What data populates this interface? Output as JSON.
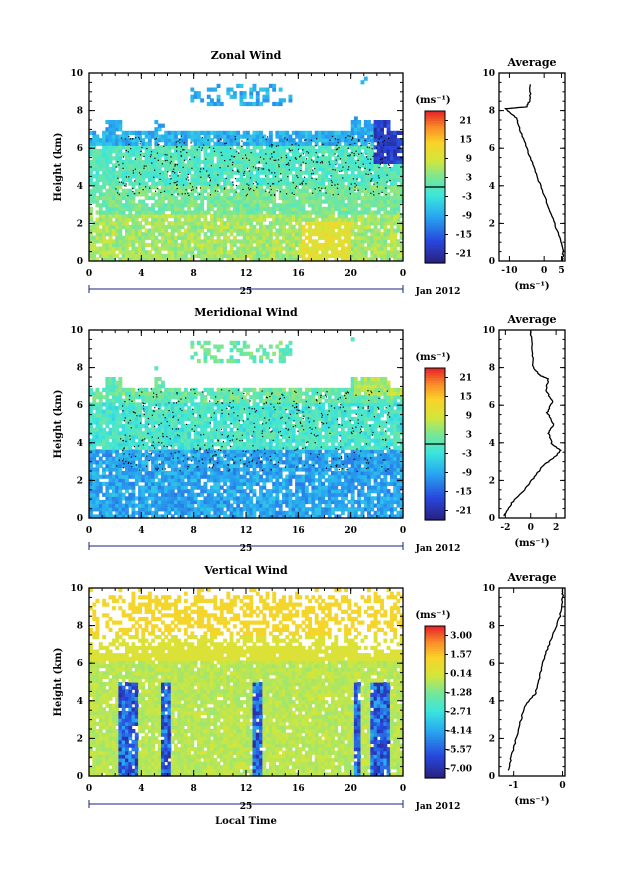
{
  "figure": {
    "x_axis_label": "Local Time",
    "date_day": "25",
    "date_month": "Jan 2012"
  },
  "chart_data": [
    {
      "type": "heatmap",
      "title": "Zonal Wind",
      "ylabel": "Height (km)",
      "xlim": [
        0,
        24
      ],
      "ylim": [
        0,
        10
      ],
      "x_ticks": [
        "0",
        "4",
        "8",
        "12",
        "16",
        "20",
        "0"
      ],
      "y_ticks": [
        "0",
        "2",
        "4",
        "6",
        "8",
        "10"
      ],
      "colorbar": {
        "unit": "(ms⁻¹)",
        "ticks": [
          "21",
          "15",
          "9",
          "3",
          "-3",
          "-9",
          "-15",
          "-21"
        ],
        "range": [
          -24,
          24
        ]
      },
      "average": {
        "title": "Average",
        "xlabel": "(ms⁻¹)",
        "x_ticks": [
          "-10",
          "0",
          "5"
        ],
        "xlim": [
          -13,
          6
        ],
        "ylim": [
          0,
          10
        ],
        "y_ticks": [
          "0",
          "2",
          "4",
          "6",
          "8",
          "10"
        ],
        "profile": [
          [
            5.2,
            0
          ],
          [
            5.5,
            0.5
          ],
          [
            5,
            1
          ],
          [
            3,
            2
          ],
          [
            1,
            3
          ],
          [
            -1,
            4
          ],
          [
            -3,
            5
          ],
          [
            -5,
            6
          ],
          [
            -7,
            7
          ],
          [
            -8,
            7.6
          ],
          [
            -11,
            8.1
          ],
          [
            -5,
            8.2
          ],
          [
            -4,
            8.6
          ],
          [
            -4,
            9.4
          ]
        ]
      }
    },
    {
      "type": "heatmap",
      "title": "Meridional Wind",
      "ylabel": "Height (km)",
      "xlim": [
        0,
        24
      ],
      "ylim": [
        0,
        10
      ],
      "x_ticks": [
        "0",
        "4",
        "8",
        "12",
        "16",
        "20",
        "0"
      ],
      "y_ticks": [
        "0",
        "2",
        "4",
        "6",
        "8",
        "10"
      ],
      "colorbar": {
        "unit": "(ms⁻¹)",
        "ticks": [
          "21",
          "15",
          "9",
          "3",
          "-3",
          "-9",
          "-15",
          "-21"
        ],
        "range": [
          -24,
          24
        ]
      },
      "average": {
        "title": "Average",
        "xlabel": "(ms⁻¹)",
        "x_ticks": [
          "-2",
          "0",
          "2"
        ],
        "xlim": [
          -2.5,
          2.7
        ],
        "ylim": [
          0,
          10
        ],
        "y_ticks": [
          "0",
          "2",
          "4",
          "6",
          "8",
          "10"
        ],
        "profile": [
          [
            -2.1,
            0.1
          ],
          [
            -1.5,
            0.8
          ],
          [
            -0.5,
            1.5
          ],
          [
            0.3,
            2.2
          ],
          [
            1,
            2.8
          ],
          [
            2,
            3.3
          ],
          [
            2.4,
            3.6
          ],
          [
            1.7,
            3.9
          ],
          [
            1.4,
            4.5
          ],
          [
            1.8,
            5
          ],
          [
            1.3,
            5.6
          ],
          [
            1.7,
            6.2
          ],
          [
            1.2,
            6.8
          ],
          [
            1.4,
            7.4
          ],
          [
            0.7,
            7.6
          ],
          [
            0.2,
            8
          ],
          [
            0.1,
            9
          ],
          [
            0,
            10
          ]
        ]
      }
    },
    {
      "type": "heatmap",
      "title": "Vertical Wind",
      "ylabel": "Height (km)",
      "xlabel": "Local Time",
      "xlim": [
        0,
        24
      ],
      "ylim": [
        0,
        10
      ],
      "x_ticks": [
        "0",
        "4",
        "8",
        "12",
        "16",
        "20",
        "0"
      ],
      "y_ticks": [
        "0",
        "2",
        "4",
        "6",
        "8",
        "10"
      ],
      "colorbar": {
        "unit": "(ms⁻¹)",
        "ticks": [
          "3.00",
          "1.57",
          "0.14",
          "-1.28",
          "-2.71",
          "-4.14",
          "-5.57",
          "-7.00"
        ],
        "range": [
          -7.7,
          3.7
        ]
      },
      "average": {
        "title": "Average",
        "xlabel": "(ms⁻¹)",
        "x_ticks": [
          "-1",
          "0"
        ],
        "xlim": [
          -1.3,
          0.05
        ],
        "ylim": [
          0,
          10
        ],
        "y_ticks": [
          "0",
          "2",
          "4",
          "6",
          "8",
          "10"
        ],
        "profile": [
          [
            -1.1,
            0.3
          ],
          [
            -1.05,
            1
          ],
          [
            -0.95,
            2
          ],
          [
            -0.85,
            3
          ],
          [
            -0.75,
            3.8
          ],
          [
            -0.55,
            4.4
          ],
          [
            -0.45,
            5.5
          ],
          [
            -0.35,
            6.5
          ],
          [
            -0.2,
            7.5
          ],
          [
            -0.05,
            8.5
          ],
          [
            0,
            9.5
          ],
          [
            0,
            10
          ]
        ]
      }
    }
  ]
}
